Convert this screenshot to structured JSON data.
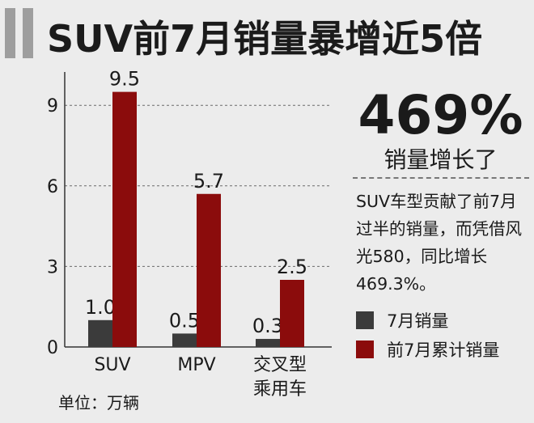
{
  "title": "SUV前7月销量暴增近5倍",
  "highlight": {
    "value": "469%",
    "caption": "销量增长了"
  },
  "description": "SUV车型贡献了前7月过半的销量，而凭借风光580，同比增长469.3%。",
  "unit_note": "单位：万辆",
  "colors": {
    "series_july": "#3b3b3b",
    "series_cumulative": "#8b0c0c",
    "background": "#ececec",
    "accent": "#9e9e9e"
  },
  "chart_data": {
    "type": "bar",
    "categories": [
      "SUV",
      "MPV",
      "交叉型\n乘用车"
    ],
    "series": [
      {
        "name": "7月销量",
        "values": [
          1.0,
          0.5,
          0.3
        ],
        "labels": [
          "1.0",
          "0.5",
          "0.3"
        ]
      },
      {
        "name": "前7月累计销量",
        "values": [
          9.5,
          5.7,
          2.5
        ],
        "labels": [
          "9.5",
          "5.7",
          "2.5"
        ]
      }
    ],
    "ylim": [
      0,
      10.0
    ],
    "yticks": [
      0,
      3,
      6,
      9
    ],
    "grid": true,
    "legend": "right"
  }
}
